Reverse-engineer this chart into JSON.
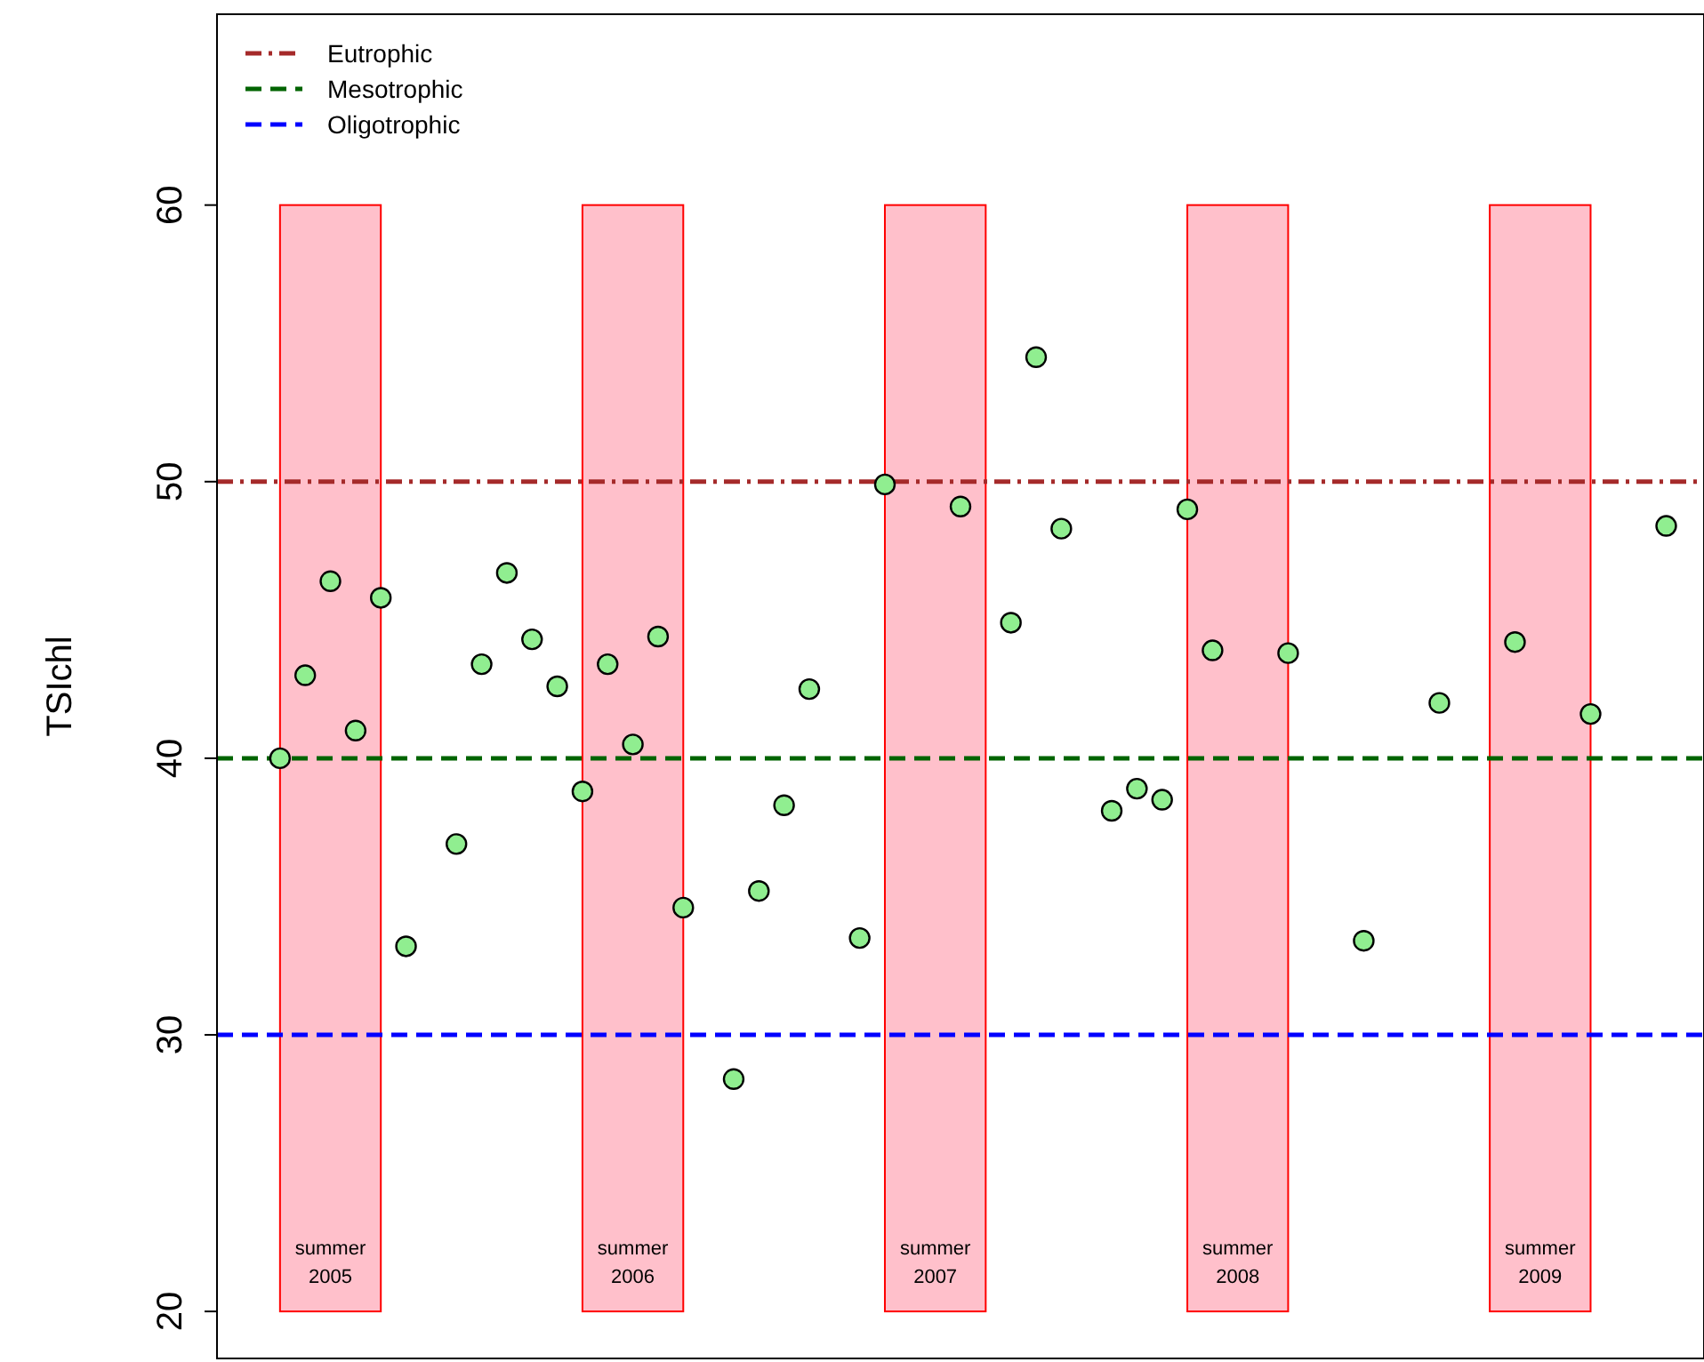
{
  "chart_data": {
    "type": "scatter",
    "ylabel": "TSIchl",
    "tick_labels": "y",
    "grid": false,
    "marker": "circle",
    "legend": "top left",
    "ylim": [
      18.3,
      66.9
    ],
    "yticks": [
      20,
      30,
      40,
      50,
      60
    ],
    "categories": [
      null,
      null,
      null,
      null,
      null,
      null,
      null,
      null,
      null,
      null,
      null,
      null,
      null,
      null,
      null,
      null,
      null,
      null,
      null,
      null,
      null,
      null,
      null,
      null,
      null,
      null,
      null,
      null,
      null,
      null,
      null,
      null,
      null,
      null,
      null,
      null,
      null,
      null,
      null,
      null,
      null,
      null,
      null,
      null,
      null,
      null,
      null,
      null,
      null,
      null,
      null,
      null,
      null,
      null,
      null,
      null,
      null,
      null,
      null
    ],
    "series": [
      {
        "color": "#90ee90",
        "values": [
          null,
          null,
          40.0,
          43.0,
          46.4,
          41.0,
          45.8,
          33.2,
          null,
          36.9,
          43.4,
          46.7,
          44.3,
          42.6,
          38.8,
          43.4,
          40.5,
          44.4,
          34.6,
          null,
          28.4,
          35.2,
          38.3,
          42.5,
          null,
          33.5,
          49.9,
          null,
          null,
          49.1,
          null,
          44.9,
          54.5,
          48.3,
          null,
          38.1,
          38.9,
          38.5,
          49.0,
          43.9,
          null,
          null,
          43.8,
          null,
          null,
          33.4,
          null,
          null,
          42.0,
          null,
          null,
          44.2,
          null,
          null,
          41.6,
          null,
          null,
          48.4,
          null
        ]
      }
    ],
    "annotations": [
      "summer\n2005",
      "summer\n2006",
      "summer\n2007",
      "summer\n2008",
      "summer\n2009"
    ],
    "ref_lines": [
      {
        "axis": "y",
        "value": 50,
        "label": "Eutrophic",
        "color": "#a52a2a",
        "line_style": "dashdot"
      },
      {
        "axis": "y",
        "value": 40,
        "label": "Mesotrophic",
        "color": "#006400",
        "line_style": "dashed"
      },
      {
        "axis": "y",
        "value": 30,
        "label": "Oligotrophic",
        "color": "#0000ff",
        "line_style": "dashed"
      }
    ]
  }
}
